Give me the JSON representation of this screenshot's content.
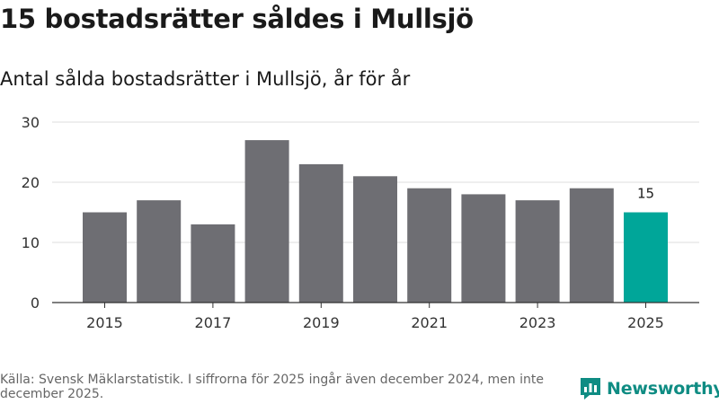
{
  "header": {
    "title": "15 bostadsrätter såldes i Mullsjö",
    "subtitle": "Antal sålda bostadsrätter i Mullsjö, år för år"
  },
  "chart_data": {
    "type": "bar",
    "title": "15 bostadsrätter såldes i Mullsjö",
    "subtitle": "Antal sålda bostadsrätter i Mullsjö, år för år",
    "categories": [
      "2015",
      "2016",
      "2017",
      "2018",
      "2019",
      "2020",
      "2021",
      "2022",
      "2023",
      "2024",
      "2025"
    ],
    "values": [
      15,
      17,
      13,
      27,
      23,
      21,
      19,
      18,
      17,
      19,
      15
    ],
    "x_tick_labels": [
      "2015",
      "2017",
      "2019",
      "2021",
      "2023",
      "2025"
    ],
    "y_ticks": [
      0,
      10,
      20,
      30
    ],
    "ylim": [
      0,
      30
    ],
    "xlabel": "",
    "ylabel": "",
    "grid": true,
    "highlight_index": 10,
    "highlight_label": "15",
    "bar_color": "#6e6e73",
    "highlight_color": "#00a699"
  },
  "footer": {
    "source": "Källa: Svensk Mäklarstatistik. I siffrorna för 2025 ingår även december 2024, men inte december 2025."
  },
  "brand": {
    "name": "Newsworthy",
    "icon": "newsworthy-logo-icon",
    "color": "#0f8c83"
  }
}
